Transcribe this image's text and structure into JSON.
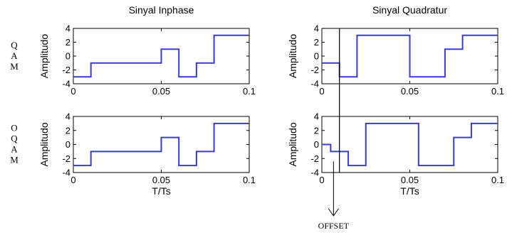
{
  "row_labels": [
    "QAM",
    "OQAM"
  ],
  "annotation": {
    "label": "OFFSET"
  },
  "chart_data": [
    {
      "type": "line",
      "id": "qam-inphase",
      "title": "Sinyal Inphase",
      "xlabel": "",
      "ylabel": "Amplitudo",
      "xlim": [
        0,
        0.1
      ],
      "ylim": [
        -4,
        4
      ],
      "xticks": [
        0,
        0.05,
        0.1
      ],
      "xticklabels": [
        "0",
        "0.05",
        "0.1"
      ],
      "yticks": [
        4,
        2,
        0,
        -2,
        -4
      ],
      "yticklabels": [
        "4",
        "2",
        "0",
        "-2",
        "-4"
      ],
      "series": [
        {
          "color": "#3a3ad8",
          "x": [
            0,
            0.01,
            0.01,
            0.05,
            0.05,
            0.06,
            0.06,
            0.07,
            0.07,
            0.08,
            0.08,
            0.1
          ],
          "y": [
            -3,
            -3,
            -1,
            -1,
            1,
            1,
            -3,
            -3,
            -1,
            -1,
            3,
            3
          ]
        }
      ]
    },
    {
      "type": "line",
      "id": "qam-quadrature",
      "title": "Sinyal Quadratur",
      "xlabel": "",
      "ylabel": "Amplitudo",
      "xlim": [
        0,
        0.1
      ],
      "ylim": [
        -4,
        4
      ],
      "xticks": [
        0,
        0.05,
        0.1
      ],
      "xticklabels": [
        "0",
        "0.05",
        "0.1"
      ],
      "yticks": [
        4,
        2,
        0,
        -2,
        -4
      ],
      "yticklabels": [
        "4",
        "2",
        "0",
        "-2",
        "-4"
      ],
      "series": [
        {
          "color": "#3a3ad8",
          "x": [
            0,
            0.01,
            0.01,
            0.02,
            0.02,
            0.05,
            0.05,
            0.07,
            0.07,
            0.08,
            0.08,
            0.1
          ],
          "y": [
            -1,
            -1,
            -3,
            -3,
            3,
            3,
            -3,
            -3,
            1,
            1,
            3,
            3
          ]
        }
      ]
    },
    {
      "type": "line",
      "id": "oqam-inphase",
      "title": "",
      "xlabel": "T/Ts",
      "ylabel": "Amplitudo",
      "xlim": [
        0,
        0.1
      ],
      "ylim": [
        -4,
        4
      ],
      "xticks": [
        0,
        0.05,
        0.1
      ],
      "xticklabels": [
        "0",
        "0.05",
        "0.1"
      ],
      "yticks": [
        4,
        2,
        0,
        -2,
        -4
      ],
      "yticklabels": [
        "4",
        "2",
        "0",
        "-2",
        "-4"
      ],
      "series": [
        {
          "color": "#3a3ad8",
          "x": [
            0,
            0.01,
            0.01,
            0.05,
            0.05,
            0.06,
            0.06,
            0.07,
            0.07,
            0.08,
            0.08,
            0.1
          ],
          "y": [
            -3,
            -3,
            -1,
            -1,
            1,
            1,
            -3,
            -3,
            -1,
            -1,
            3,
            3
          ]
        }
      ]
    },
    {
      "type": "line",
      "id": "oqam-quadrature",
      "title": "",
      "xlabel": "T/Ts",
      "ylabel": "Amplitudo",
      "xlim": [
        0,
        0.1
      ],
      "ylim": [
        -4,
        4
      ],
      "xticks": [
        0,
        0.05,
        0.1
      ],
      "xticklabels": [
        "0",
        "0.05",
        "0.1"
      ],
      "yticks": [
        4,
        2,
        0,
        -2,
        -4
      ],
      "yticklabels": [
        "4",
        "2",
        "0",
        "-2",
        "-4"
      ],
      "offset_x": 0.005,
      "series": [
        {
          "color": "#3a3ad8",
          "x": [
            0,
            0.005,
            0.005,
            0.015,
            0.015,
            0.025,
            0.025,
            0.055,
            0.055,
            0.075,
            0.075,
            0.085,
            0.085,
            0.1
          ],
          "y": [
            0,
            0,
            -1,
            -1,
            -3,
            -3,
            3,
            3,
            -3,
            -3,
            1,
            1,
            3,
            3
          ]
        }
      ]
    }
  ]
}
